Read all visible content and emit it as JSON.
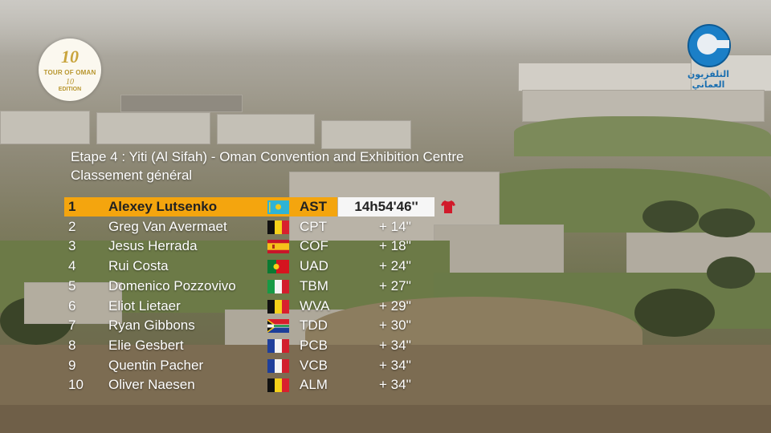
{
  "broadcast": {
    "race_logo": {
      "number": "10",
      "line1": "TOUR OF OMAN",
      "line2": "10",
      "line3": "EDITION",
      "icon": "tour-of-oman-logo"
    },
    "channel_logo": {
      "text": "التلفزيون العماني",
      "icon": "oman-tv-logo",
      "color": "#1b7fc7"
    }
  },
  "standings": {
    "title": "Etape 4 : Yiti (Al Sifah) - Oman Convention and Exhibition Centre",
    "subtitle": "Classement général",
    "leader_color": "#f4a50e",
    "leader_shirt_color": "#d11a2a",
    "rows": [
      {
        "pos": "1",
        "name": "Alexey Lutsenko",
        "flag": "kazakhstan-flag",
        "team": "AST",
        "time": "14h54'46''"
      },
      {
        "pos": "2",
        "name": "Greg Van Avermaet",
        "flag": "belgium-flag",
        "team": "CPT",
        "time": "+ 14''"
      },
      {
        "pos": "3",
        "name": "Jesus Herrada",
        "flag": "spain-flag",
        "team": "COF",
        "time": "+ 18''"
      },
      {
        "pos": "4",
        "name": "Rui Costa",
        "flag": "portugal-flag",
        "team": "UAD",
        "time": "+ 24''"
      },
      {
        "pos": "5",
        "name": "Domenico Pozzovivo",
        "flag": "italy-flag",
        "team": "TBM",
        "time": "+ 27''"
      },
      {
        "pos": "6",
        "name": "Eliot Lietaer",
        "flag": "belgium-flag",
        "team": "WVA",
        "time": "+ 29''"
      },
      {
        "pos": "7",
        "name": "Ryan Gibbons",
        "flag": "south-africa-flag",
        "team": "TDD",
        "time": "+ 30''"
      },
      {
        "pos": "8",
        "name": "Elie Gesbert",
        "flag": "france-flag",
        "team": "PCB",
        "time": "+ 34''"
      },
      {
        "pos": "9",
        "name": "Quentin Pacher",
        "flag": "france-flag",
        "team": "VCB",
        "time": "+ 34''"
      },
      {
        "pos": "10",
        "name": "Oliver Naesen",
        "flag": "belgium-flag",
        "team": "ALM",
        "time": "+ 34''"
      }
    ]
  }
}
